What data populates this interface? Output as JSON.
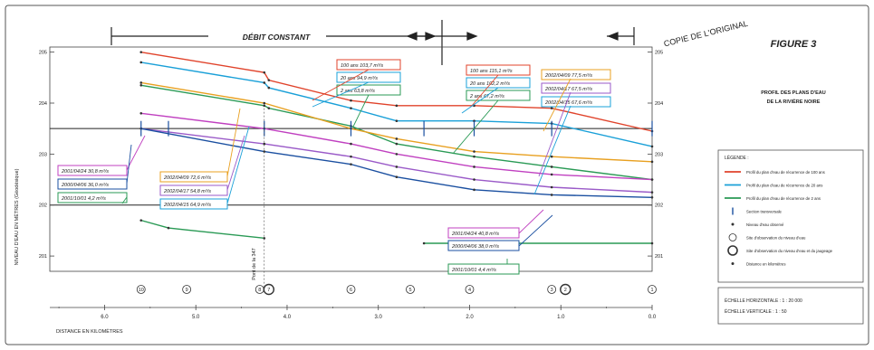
{
  "figure_label": "FIGURE 3",
  "subtitle_line1": "PROFIL DES PLANS D'EAU",
  "subtitle_line2": "DE LA RIVIÈRE NOIRE",
  "stamp": "COPIE DE L'ORIGINAL",
  "debit_label": "DÉBIT CONSTANT",
  "y_axis_label": "NIVEAU D'EAU EN MÈTRES (Géodésique)",
  "x_axis_label": "DISTANCE EN KILOMÈTRES",
  "pont_label": "Pont de la 347",
  "legend": {
    "title": "LÉGENDE :",
    "items": [
      {
        "text": "Profil du plan d'eau de récurrence de 100 ans",
        "color": "#e0432b",
        "kind": "line"
      },
      {
        "text": "Profil du plan d'eau de récurrence de 20 ans",
        "color": "#1aa0d8",
        "kind": "line"
      },
      {
        "text": "Profil du plan d'eau de récurrence de 2 ans",
        "color": "#2a9a55",
        "kind": "line"
      },
      {
        "text": "Section transversale",
        "color": "#1a4fa0",
        "kind": "tick"
      },
      {
        "text": "Niveau d'eau observé",
        "color": "#333333",
        "kind": "dot"
      },
      {
        "text": "Site d'observation du niveau d'eau",
        "color": "#333333",
        "kind": "circle"
      },
      {
        "text": "Site d'observation du niveau d'eau et du jaugeage",
        "color": "#333333",
        "kind": "bigcircle"
      },
      {
        "text": "Distance en kilomètres",
        "color": "#333333",
        "kind": "dot"
      }
    ]
  },
  "scale": {
    "horizontal": "ÉCHELLE HORIZONTALE : 1 : 20 000",
    "vertical": "ÉCHELLE VERTICALE : 1 : 50"
  },
  "site_markers": [
    "10",
    "9",
    "8",
    "7",
    "6",
    "5",
    "4",
    "3",
    "2",
    "1"
  ],
  "flow_labels": [
    {
      "text": "100 ans   103,7 m³/s",
      "color": "#e0432b"
    },
    {
      "text": "20 ans   94,9 m³/s",
      "color": "#1aa0d8"
    },
    {
      "text": "2 ans   63,8 m³/s",
      "color": "#2a9a55"
    },
    {
      "text": "100 ans   115,1 m³/s",
      "color": "#e0432b"
    },
    {
      "text": "20 ans   102,2 m³/s",
      "color": "#1aa0d8"
    },
    {
      "text": "2 ans   67,2 m³/s",
      "color": "#2a9a55"
    },
    {
      "text": "2001/04/24   30,8 m³/s",
      "color": "#c040c0"
    },
    {
      "text": "2000/04/06   36,0 m³/s",
      "color": "#1a4fa0"
    },
    {
      "text": "2001/10/01   4,2 m³/s",
      "color": "#2a9a55"
    },
    {
      "text": "2002/04/09   72,6 m³/s",
      "color": "#e8a020"
    },
    {
      "text": "2002/04/17   54,8 m³/s",
      "color": "#9a5ac8"
    },
    {
      "text": "2002/04/15   64,9 m³/s",
      "color": "#1aa0d8"
    },
    {
      "text": "2002/04/09   77,5 m³/s",
      "color": "#e8a020"
    },
    {
      "text": "2002/04/17   67,5 m³/s",
      "color": "#9a5ac8"
    },
    {
      "text": "2002/04/15   67,6 m³/s",
      "color": "#1aa0d8"
    },
    {
      "text": "2001/04/24   40,8 m³/s",
      "color": "#c040c0"
    },
    {
      "text": "2000/04/06   38,0 m³/s",
      "color": "#1a4fa0"
    },
    {
      "text": "2001/10/01   4,4 m³/s",
      "color": "#2a9a55"
    }
  ],
  "chart_data": {
    "type": "line",
    "xlabel": "DISTANCE EN KILOMÈTRES",
    "ylabel": "NIVEAU D'EAU EN MÈTRES (Géodésique)",
    "xlim": [
      6.6,
      0
    ],
    "ylim": [
      200.7,
      205.1
    ],
    "x_ticks": [
      6.0,
      5.0,
      4.0,
      3.0,
      2.0,
      1.0,
      0.0
    ],
    "x_tick_labels": [
      "6.0",
      "5.0",
      "4.0",
      "3.0",
      "2.0",
      "1.0",
      "0.0"
    ],
    "y_ticks": [
      201,
      202,
      203,
      204,
      205
    ],
    "y_tick_labels": [
      "201",
      "202",
      "203",
      "204",
      "205"
    ],
    "grid": false,
    "legend_position": "right",
    "series": [
      {
        "x": [
          5.6,
          4.25,
          4.2,
          3.3,
          2.8,
          1.95,
          1.1,
          0.0
        ],
        "values": [
          205.0,
          204.6,
          204.45,
          204.05,
          203.95,
          203.95,
          203.9,
          203.45
        ],
        "color": "#e0432b"
      },
      {
        "x": [
          5.6,
          4.25,
          4.2,
          3.3,
          2.8,
          1.95,
          1.1,
          0.0
        ],
        "values": [
          204.8,
          204.4,
          204.3,
          203.9,
          203.65,
          203.65,
          203.6,
          203.15
        ],
        "color": "#1aa0d8"
      },
      {
        "x": [
          5.6,
          4.25,
          4.2,
          3.3,
          2.8,
          1.95,
          1.1,
          0.0
        ],
        "values": [
          204.35,
          203.95,
          203.9,
          203.55,
          203.2,
          202.95,
          202.75,
          202.5
        ],
        "color": "#2a9a55"
      },
      {
        "x": [
          5.6,
          4.25,
          3.3,
          2.8,
          1.95,
          1.1,
          0.0
        ],
        "values": [
          204.4,
          204.0,
          203.5,
          203.3,
          203.05,
          202.95,
          202.85
        ],
        "color": "#e8a020"
      },
      {
        "x": [
          5.6,
          4.25,
          3.3,
          2.8,
          1.95,
          1.1,
          0.0
        ],
        "values": [
          203.8,
          203.5,
          203.2,
          203.0,
          202.75,
          202.6,
          202.5
        ],
        "color": "#c040c0"
      },
      {
        "x": [
          5.6,
          4.25,
          3.3,
          2.8,
          1.95,
          1.1,
          0.0
        ],
        "values": [
          203.5,
          203.2,
          202.95,
          202.75,
          202.5,
          202.35,
          202.25
        ],
        "color": "#9a5ac8"
      },
      {
        "x": [
          5.6,
          4.25,
          3.3,
          2.8,
          1.95,
          1.1,
          0.0
        ],
        "values": [
          203.5,
          203.05,
          202.8,
          202.55,
          202.3,
          202.2,
          202.15
        ],
        "color": "#1a4fa0"
      },
      {
        "x": [
          5.6,
          5.3,
          4.25
        ],
        "values": [
          201.7,
          201.55,
          201.35
        ],
        "color": "#2a9a55"
      },
      {
        "x": [
          2.5,
          0.0
        ],
        "values": [
          201.25,
          201.25
        ],
        "color": "#2a9a55"
      }
    ]
  }
}
